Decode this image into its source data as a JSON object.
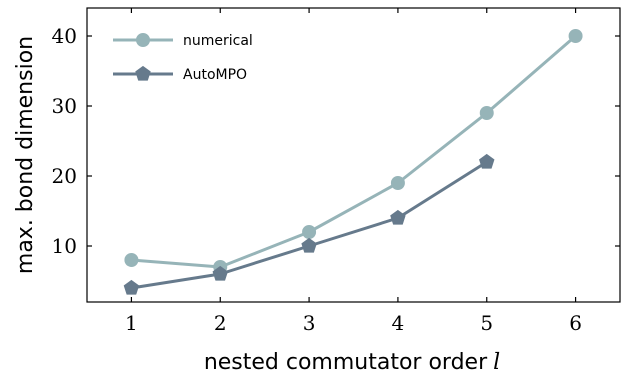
{
  "chart_data": {
    "type": "line",
    "xlabel": "nested commutator order",
    "xlabel_var": "l",
    "ylabel": "max. bond dimension",
    "xlim": [
      0.5,
      6.5
    ],
    "ylim": [
      2,
      44
    ],
    "xticks": [
      1,
      2,
      3,
      4,
      5,
      6
    ],
    "yticks": [
      10,
      20,
      30,
      40
    ],
    "grid": false,
    "legend_position": "top-left",
    "series": [
      {
        "name": "numerical",
        "marker": "circle",
        "color": "#96b4b8",
        "x": [
          1,
          2,
          3,
          4,
          5,
          6
        ],
        "y": [
          8,
          7,
          12,
          19,
          29,
          40
        ]
      },
      {
        "name": "AutoMPO",
        "marker": "pentagon",
        "color": "#667a8c",
        "x": [
          1,
          2,
          3,
          4,
          5
        ],
        "y": [
          4,
          6,
          10,
          14,
          22
        ]
      }
    ]
  }
}
